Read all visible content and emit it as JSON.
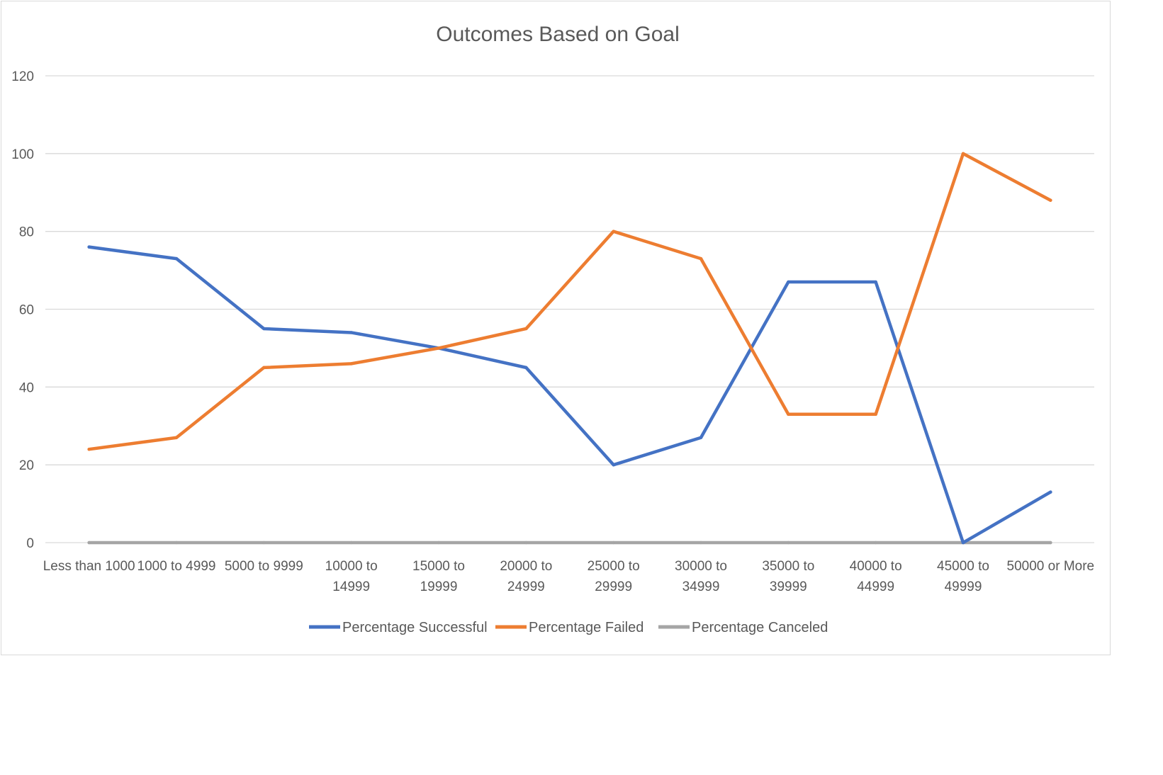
{
  "chart_data": {
    "type": "line",
    "title": "Outcomes Based on Goal",
    "xlabel": "",
    "ylabel": "",
    "ylim": [
      0,
      120
    ],
    "yticks": [
      0,
      20,
      40,
      60,
      80,
      100,
      120
    ],
    "grid": true,
    "legend_position": "bottom",
    "categories": [
      [
        "Less than 1000"
      ],
      [
        "1000 to 4999"
      ],
      [
        "5000 to 9999"
      ],
      [
        "10000 to",
        "14999"
      ],
      [
        "15000 to",
        "19999"
      ],
      [
        "20000 to",
        "24999"
      ],
      [
        "25000 to",
        "29999"
      ],
      [
        "30000 to",
        "34999"
      ],
      [
        "35000 to",
        "39999"
      ],
      [
        "40000 to",
        "44999"
      ],
      [
        "45000 to",
        "49999"
      ],
      [
        "50000 or More"
      ]
    ],
    "series": [
      {
        "name": "Percentage Successful",
        "color": "#4472c4",
        "values": [
          76,
          73,
          55,
          54,
          50,
          45,
          20,
          27,
          67,
          67,
          0,
          13
        ]
      },
      {
        "name": "Percentage Failed",
        "color": "#ed7d31",
        "values": [
          24,
          27,
          45,
          46,
          50,
          55,
          80,
          73,
          33,
          33,
          100,
          88
        ]
      },
      {
        "name": "Percentage Canceled",
        "color": "#a5a5a5",
        "values": [
          0,
          0,
          0,
          0,
          0,
          0,
          0,
          0,
          0,
          0,
          0,
          0
        ]
      }
    ]
  }
}
